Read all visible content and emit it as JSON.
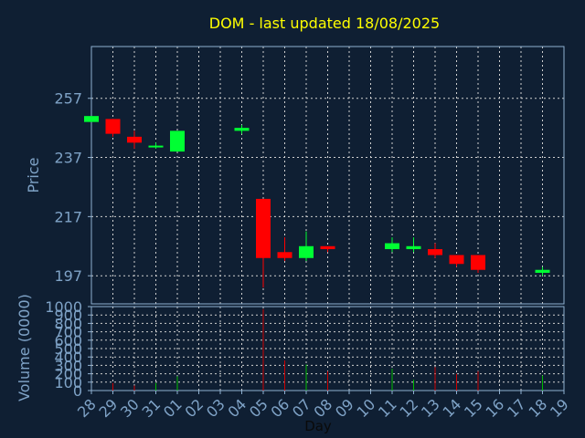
{
  "colors": {
    "background": "#0f1f33",
    "axis": "#8fb0d0",
    "tick_text": "#7fa3c7",
    "title": "#ffff00",
    "grid": "#d0d0d0",
    "up": "#00ff33",
    "down": "#ff0000",
    "vol_up": "#00bb00",
    "vol_down": "#cc0000"
  },
  "chart_data": {
    "type": "candlestick",
    "title": "DOM - last updated 18/08/2025",
    "xlabel": "Day",
    "price": {
      "ylabel": "Price",
      "ylim": [
        187.5,
        274.5
      ],
      "yticks": [
        197,
        217,
        237,
        257
      ],
      "grid": true
    },
    "volume": {
      "ylabel": "Volume (0000)",
      "ylim": [
        0,
        1000
      ],
      "yticks": [
        0,
        100,
        200,
        300,
        400,
        500,
        600,
        700,
        800,
        900,
        1000
      ],
      "grid": true
    },
    "x_tick_labels": [
      "28",
      "29",
      "30",
      "31",
      "01",
      "02",
      "03",
      "04",
      "05",
      "06",
      "07",
      "08",
      "09",
      "10",
      "11",
      "12",
      "13",
      "14",
      "15",
      "16",
      "17",
      "18",
      "19"
    ],
    "candles": [
      {
        "day": "28",
        "open": 249,
        "high": 251,
        "low": 249,
        "close": 251,
        "volume": 0
      },
      {
        "day": "29",
        "open": 250,
        "high": 250,
        "low": 244,
        "close": 245,
        "volume": 90
      },
      {
        "day": "30",
        "open": 244,
        "high": 246,
        "low": 240,
        "close": 242,
        "volume": 60
      },
      {
        "day": "31",
        "open": 241,
        "high": 242,
        "low": 240,
        "close": 241,
        "volume": 90
      },
      {
        "day": "01",
        "open": 239,
        "high": 246,
        "low": 239,
        "close": 246,
        "volume": 170
      },
      {
        "day": "04",
        "open": 246,
        "high": 248,
        "low": 245,
        "close": 247,
        "volume": 0
      },
      {
        "day": "05",
        "open": 223,
        "high": 223,
        "low": 193,
        "close": 203,
        "volume": 970
      },
      {
        "day": "06",
        "open": 205,
        "high": 210,
        "low": 202,
        "close": 203,
        "volume": 360
      },
      {
        "day": "07",
        "open": 203,
        "high": 212,
        "low": 202,
        "close": 207,
        "volume": 310
      },
      {
        "day": "08",
        "open": 207,
        "high": 207,
        "low": 205,
        "close": 206,
        "volume": 230
      },
      {
        "day": "11",
        "open": 206,
        "high": 210,
        "low": 205,
        "close": 208,
        "volume": 260
      },
      {
        "day": "12",
        "open": 206,
        "high": 210,
        "low": 205,
        "close": 207,
        "volume": 130
      },
      {
        "day": "13",
        "open": 206,
        "high": 208,
        "low": 203,
        "close": 204,
        "volume": 280
      },
      {
        "day": "14",
        "open": 204,
        "high": 204,
        "low": 200,
        "close": 201,
        "volume": 200
      },
      {
        "day": "15",
        "open": 204,
        "high": 204,
        "low": 198,
        "close": 199,
        "volume": 230
      },
      {
        "day": "18",
        "open": 198,
        "high": 200,
        "low": 197,
        "close": 199,
        "volume": 180
      }
    ]
  }
}
